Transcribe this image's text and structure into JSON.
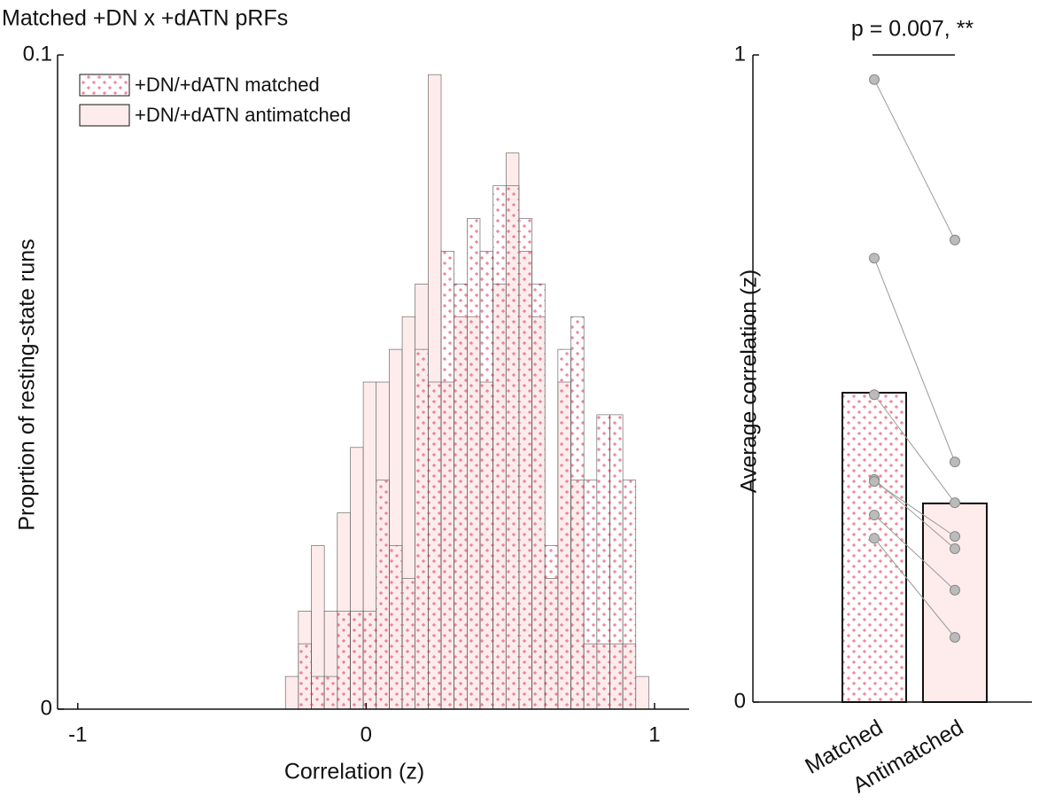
{
  "chart_data": [
    {
      "type": "histogram",
      "title": "Matched +DN x +dATN pRFs",
      "x_label": "Correlation (z)",
      "y_label": "Proprtion of resting-state runs",
      "bins": [
        -0.28,
        -0.235,
        -0.19,
        -0.145,
        -0.1,
        -0.055,
        -0.01,
        0.035,
        0.08,
        0.125,
        0.17,
        0.215,
        0.26,
        0.305,
        0.35,
        0.395,
        0.44,
        0.485,
        0.53,
        0.575,
        0.62,
        0.665,
        0.71,
        0.755,
        0.8,
        0.845,
        0.89,
        0.935,
        0.98
      ],
      "series": [
        {
          "name": "+DN/+dATN matched",
          "color": "#e8607e",
          "fill": "pattern",
          "values": [
            0,
            0.01,
            0.005,
            0.005,
            0.015,
            0.015,
            0.015,
            0.035,
            0.025,
            0.02,
            0.055,
            0.05,
            0.07,
            0.065,
            0.075,
            0.07,
            0.08,
            0.08,
            0.075,
            0.065,
            0.025,
            0.055,
            0.06,
            0.035,
            0.045,
            0.045,
            0.035,
            0
          ]
        },
        {
          "name": "+DN/+dATN antimatched",
          "color": "#fdeceb",
          "fill": "solid",
          "values": [
            0.005,
            0.015,
            0.025,
            0.015,
            0.03,
            0.04,
            0.05,
            0.05,
            0.055,
            0.06,
            0.065,
            0.097,
            0.05,
            0.06,
            0.06,
            0.05,
            0.065,
            0.085,
            0.07,
            0.06,
            0.02,
            0.05,
            0.035,
            0.01,
            0.01,
            0.01,
            0.01,
            0.005
          ]
        }
      ],
      "xlim": [
        -1.07,
        1.12
      ],
      "xticks": [
        -1,
        0,
        1
      ],
      "ylim": [
        0,
        0.1
      ],
      "yticks": [
        0,
        0.1
      ],
      "legend": "upper left"
    },
    {
      "type": "bar",
      "y_label": "Average correlation (z)",
      "categories": [
        "Matched",
        "Antimatched"
      ],
      "values": [
        0.478,
        0.307
      ],
      "colors": [
        "#e8607e",
        "#fdeceb"
      ],
      "fills": [
        "pattern",
        "solid"
      ],
      "points": [
        [
          0.962,
          0.686,
          0.475,
          0.344,
          0.341,
          0.289,
          0.253
        ],
        [
          0.714,
          0.371,
          0.308,
          0.237,
          0.256,
          0.173,
          0.1
        ]
      ],
      "point_color": "#bbbbbb",
      "annotation": "p = 0.007, **",
      "ylim": [
        0,
        1
      ],
      "yticks": [
        0,
        1
      ]
    }
  ]
}
